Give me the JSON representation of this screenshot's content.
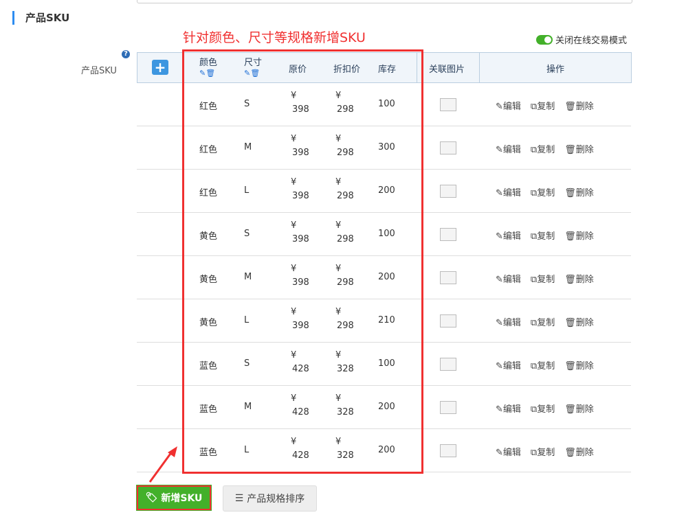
{
  "section_title": "产品SKU",
  "annotation": "针对颜色、尺寸等规格新增SKU",
  "toggle_label": "关闭在线交易模式",
  "field_label": "产品SKU",
  "help": "?",
  "headers": {
    "color": "颜色",
    "size": "尺寸",
    "price": "原价",
    "discount": "折扣价",
    "stock": "库存",
    "image": "关联图片",
    "ops": "操作"
  },
  "currency": "¥",
  "actions": {
    "edit": "编辑",
    "copy": "复制",
    "delete": "删除"
  },
  "rows": [
    {
      "color": "红色",
      "size": "S",
      "price": "398",
      "discount": "298",
      "stock": "100"
    },
    {
      "color": "红色",
      "size": "M",
      "price": "398",
      "discount": "298",
      "stock": "300"
    },
    {
      "color": "红色",
      "size": "L",
      "price": "398",
      "discount": "298",
      "stock": "200"
    },
    {
      "color": "黄色",
      "size": "S",
      "price": "398",
      "discount": "298",
      "stock": "100"
    },
    {
      "color": "黄色",
      "size": "M",
      "price": "398",
      "discount": "298",
      "stock": "200"
    },
    {
      "color": "黄色",
      "size": "L",
      "price": "398",
      "discount": "298",
      "stock": "210"
    },
    {
      "color": "蓝色",
      "size": "S",
      "price": "428",
      "discount": "328",
      "stock": "100"
    },
    {
      "color": "蓝色",
      "size": "M",
      "price": "428",
      "discount": "328",
      "stock": "200"
    },
    {
      "color": "蓝色",
      "size": "L",
      "price": "428",
      "discount": "328",
      "stock": "200"
    }
  ],
  "buttons": {
    "add_sku": "新增SKU",
    "sort": "产品规格排序"
  },
  "colors": {
    "accent": "#43b02a",
    "highlight": "#f03030",
    "header_bg": "#f0f5fa"
  }
}
